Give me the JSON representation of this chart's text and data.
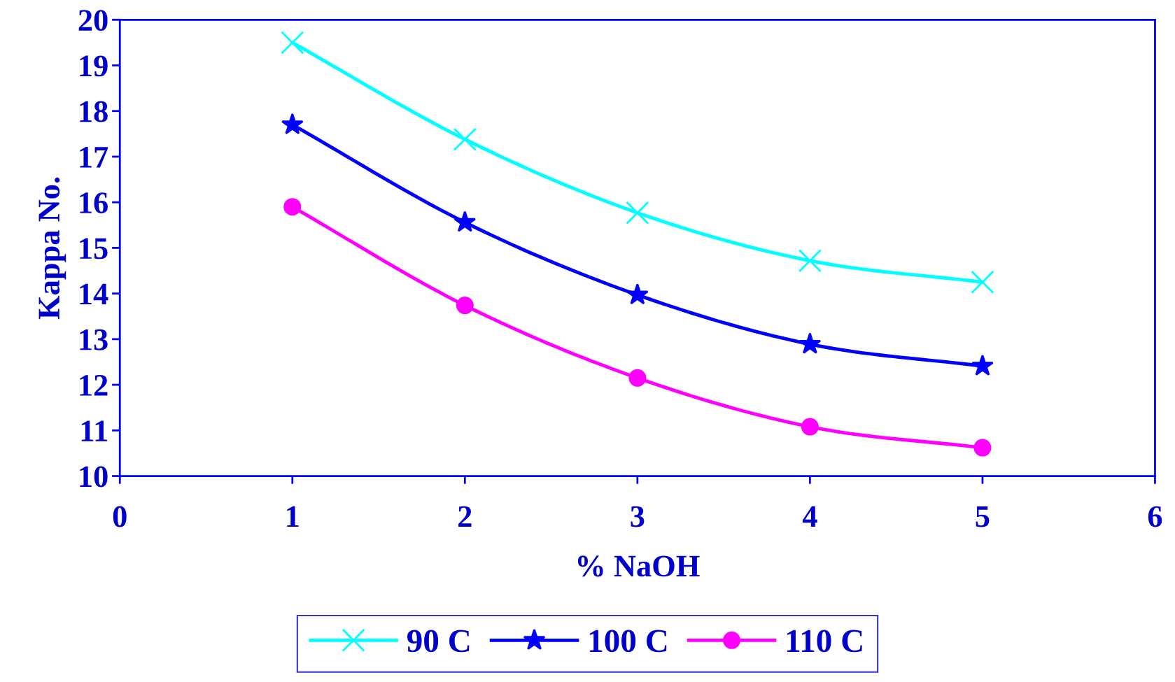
{
  "chart_data": {
    "type": "line",
    "xlabel": "% NaOH",
    "ylabel": "Kappa No.",
    "x": [
      1,
      2,
      3,
      4,
      5
    ],
    "series": [
      {
        "name": "90 C",
        "color": "#00ffff",
        "marker": "cross",
        "values": [
          19.5,
          17.38,
          15.77,
          14.72,
          14.25
        ]
      },
      {
        "name": "100 C",
        "color": "#0000ff",
        "marker": "star",
        "values": [
          17.7,
          15.56,
          13.97,
          12.89,
          12.41
        ]
      },
      {
        "name": "110 C",
        "color": "#ff00ff",
        "marker": "circle",
        "values": [
          15.9,
          13.74,
          12.15,
          11.08,
          10.62
        ]
      }
    ],
    "xlim": [
      0,
      6
    ],
    "xticks": [
      0,
      1,
      2,
      3,
      4,
      5,
      6
    ],
    "ylim": [
      10,
      20
    ],
    "yticks": [
      10,
      11,
      12,
      13,
      14,
      15,
      16,
      17,
      18,
      19,
      20
    ],
    "grid": false,
    "legend": "bottom",
    "line_style": "solid"
  }
}
